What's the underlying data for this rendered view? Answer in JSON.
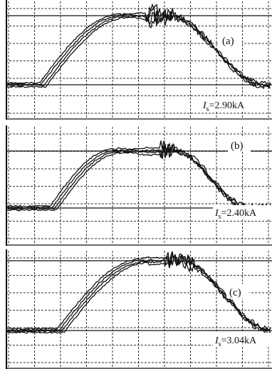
{
  "panels": [
    {
      "label": "(a)",
      "current_symbol": "I",
      "current_subscript": "s",
      "current_value": "=2.90kA"
    },
    {
      "label": "(b)",
      "current_symbol": "I",
      "current_subscript": "s",
      "current_value": "=2.40kA"
    },
    {
      "label": "(c)",
      "current_symbol": "I",
      "current_subscript": "s",
      "current_value": "=3.04kA"
    }
  ]
}
